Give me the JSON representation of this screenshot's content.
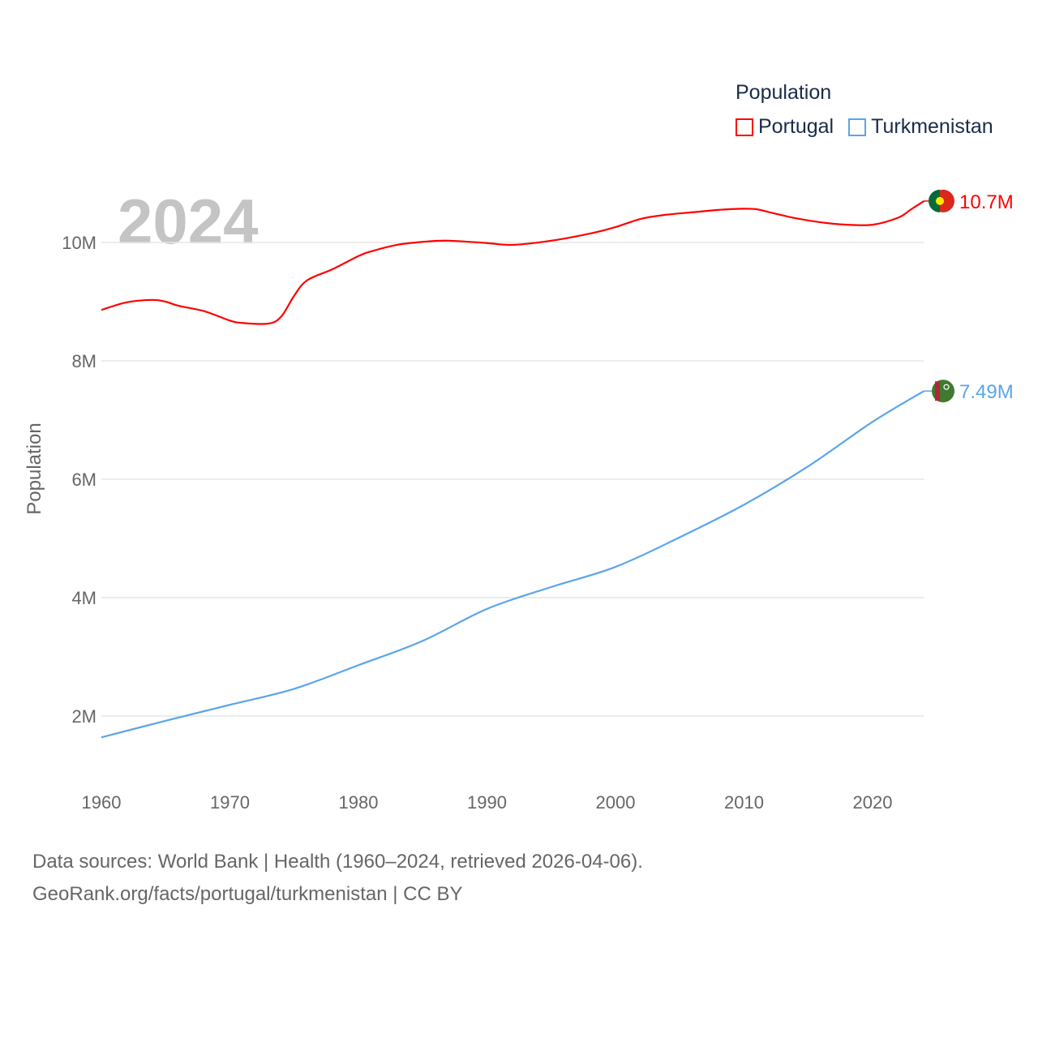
{
  "chart_data": {
    "type": "line",
    "title": "Population",
    "year_label": "2024",
    "xlabel": "",
    "ylabel": "Population",
    "xlim": [
      1960,
      2024
    ],
    "ylim": [
      0,
      11000000
    ],
    "x_ticks": [
      1960,
      1970,
      1980,
      1990,
      2000,
      2010,
      2020
    ],
    "x_tick_labels": [
      "1960",
      "1970",
      "1980",
      "1990",
      "2000",
      "2010",
      "2020"
    ],
    "y_ticks": [
      2000000,
      4000000,
      6000000,
      8000000,
      10000000
    ],
    "y_tick_labels": [
      "2M",
      "4M",
      "6M",
      "8M",
      "10M"
    ],
    "grid": true,
    "legend_position": "top-right",
    "series": [
      {
        "name": "Portugal",
        "color": "#ff0000",
        "end_label": "10.7M",
        "flag": "portugal-flag",
        "x": [
          1960,
          1962,
          1964,
          1965,
          1966,
          1968,
          1970,
          1971,
          1973,
          1974,
          1975,
          1976,
          1978,
          1980,
          1981,
          1983,
          1985,
          1987,
          1990,
          1992,
          1995,
          1998,
          2000,
          2002,
          2004,
          2006,
          2008,
          2010,
          2011,
          2012,
          2014,
          2016,
          2018,
          2020,
          2022,
          2023,
          2024
        ],
        "values": [
          8.86,
          8.99,
          9.03,
          9.0,
          8.93,
          8.84,
          8.68,
          8.64,
          8.63,
          8.75,
          9.1,
          9.36,
          9.55,
          9.77,
          9.85,
          9.96,
          10.01,
          10.03,
          9.99,
          9.96,
          10.03,
          10.15,
          10.26,
          10.4,
          10.47,
          10.51,
          10.55,
          10.57,
          10.56,
          10.51,
          10.41,
          10.34,
          10.3,
          10.3,
          10.42,
          10.56,
          10.7
        ]
      },
      {
        "name": "Turkmenistan",
        "color": "#5aa5ea",
        "end_label": "7.49M",
        "flag": "turkmenistan-flag",
        "x": [
          1960,
          1965,
          1970,
          1975,
          1980,
          1985,
          1990,
          1995,
          2000,
          2005,
          2010,
          2015,
          2020,
          2024
        ],
        "values": [
          1.64,
          1.92,
          2.19,
          2.46,
          2.86,
          3.27,
          3.81,
          4.18,
          4.52,
          5.02,
          5.57,
          6.22,
          6.97,
          7.49
        ]
      }
    ],
    "value_unit": "millions"
  },
  "footer": {
    "line1": "Data sources: World Bank | Health (1960–2024, retrieved 2026-04-06).",
    "line2": "GeoRank.org/facts/portugal/turkmenistan | CC BY"
  }
}
